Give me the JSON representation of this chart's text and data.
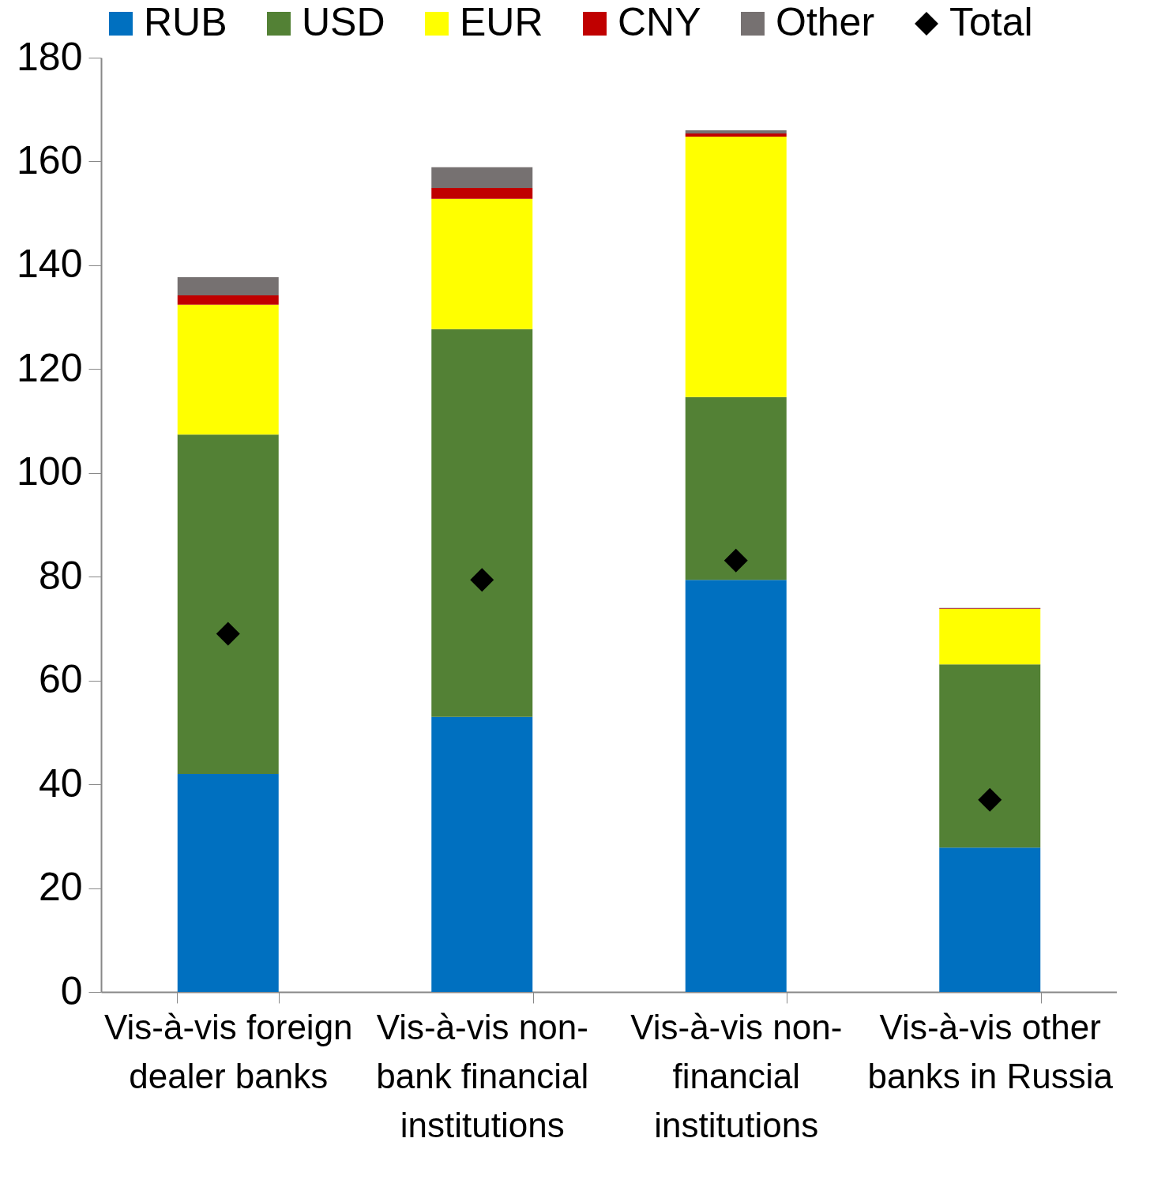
{
  "chart_data": {
    "type": "bar",
    "stacked": true,
    "categories": [
      "Vis-à-vis foreign dealer banks",
      "Vis-à-vis non-bank financial institutions",
      "Vis-à-vis non-financial institutions",
      "Vis-à-vis other banks in Russia"
    ],
    "series": [
      {
        "name": "RUB",
        "color": "#0070c0",
        "values": [
          42.0,
          53.0,
          79.4,
          27.8
        ]
      },
      {
        "name": "USD",
        "color": "#538135",
        "values": [
          65.4,
          74.7,
          35.2,
          35.3
        ]
      },
      {
        "name": "EUR",
        "color": "#ffff00",
        "values": [
          25.0,
          25.1,
          50.2,
          10.7
        ]
      },
      {
        "name": "CNY",
        "color": "#c00000",
        "values": [
          1.8,
          2.1,
          0.6,
          0.1
        ]
      },
      {
        "name": "Other",
        "color": "#767171",
        "values": [
          3.5,
          4.0,
          0.6,
          0.1
        ]
      },
      {
        "name": "Total",
        "color": "#000000",
        "type": "scatter",
        "marker": "diamond",
        "values": [
          69,
          79.4,
          83.1,
          37.0
        ]
      }
    ],
    "ylim": [
      0,
      180
    ],
    "yticks": [
      0,
      20,
      40,
      60,
      80,
      100,
      120,
      140,
      160,
      180
    ],
    "grid": false,
    "legend": "top"
  }
}
